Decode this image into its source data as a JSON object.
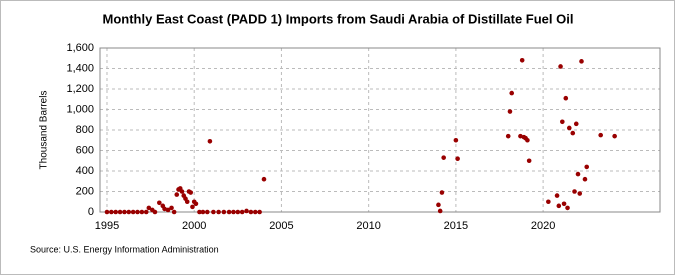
{
  "chart_data": {
    "type": "scatter",
    "title": "Monthly East Coast (PADD 1) Imports from Saudi Arabia of Distillate Fuel Oil",
    "y_label": "Thousand Barrels",
    "source": "Source: U.S. Energy Information Administration",
    "color": "#990000",
    "grid": true,
    "xlim": [
      1994.6,
      2026.7
    ],
    "ylim": [
      0,
      1600
    ],
    "xticks": [
      1995,
      2000,
      2005,
      2010,
      2015,
      2020
    ],
    "yticks": [
      0,
      200,
      400,
      600,
      800,
      {
        "value": 1000,
        "label": "1,000"
      },
      {
        "value": 1200,
        "label": "1,200"
      },
      {
        "value": 1400,
        "label": "1,400"
      },
      {
        "value": 1600,
        "label": "1,600"
      }
    ],
    "x": [
      1995,
      1995.25,
      1995.5,
      1995.75,
      1996,
      1996.25,
      1996.5,
      1996.75,
      1997,
      1997.25,
      1997.4,
      1997.6,
      1997.75,
      1998,
      1998.2,
      1998.3,
      1998.5,
      1998.7,
      1998.85,
      1999,
      1999.1,
      1999.2,
      1999.3,
      1999.4,
      1999.5,
      1999.6,
      1999.7,
      1999.8,
      1999.9,
      2000,
      2000.1,
      2000.3,
      2000.5,
      2000.75,
      2000.9,
      2001.1,
      2001.4,
      2001.7,
      2002,
      2002.25,
      2002.5,
      2002.75,
      2003,
      2003.25,
      2003.5,
      2003.75,
      2004,
      2014,
      2014.1,
      2014.2,
      2014.3,
      2015,
      2015.1,
      2018,
      2018.1,
      2018.2,
      2018.7,
      2018.8,
      2018.9,
      2019,
      2019.1,
      2019.2,
      2020.3,
      2020.8,
      2020.9,
      2021,
      2021.1,
      2021.2,
      2021.3,
      2021.4,
      2021.5,
      2021.7,
      2021.8,
      2021.9,
      2022,
      2022.1,
      2022.2,
      2022.4,
      2022.5,
      2023.3,
      2024.1
    ],
    "values": [
      0,
      0,
      0,
      0,
      0,
      0,
      0,
      0,
      0,
      0,
      40,
      20,
      0,
      90,
      60,
      30,
      20,
      40,
      0,
      170,
      220,
      230,
      200,
      160,
      130,
      100,
      200,
      190,
      50,
      100,
      80,
      0,
      0,
      0,
      690,
      0,
      0,
      0,
      0,
      0,
      0,
      0,
      10,
      0,
      0,
      0,
      320,
      70,
      10,
      190,
      530,
      700,
      520,
      740,
      980,
      1160,
      740,
      1480,
      730,
      720,
      700,
      500,
      100,
      160,
      60,
      1420,
      880,
      80,
      1110,
      40,
      820,
      770,
      200,
      860,
      370,
      180,
      1470,
      320,
      440,
      750,
      740
    ]
  }
}
